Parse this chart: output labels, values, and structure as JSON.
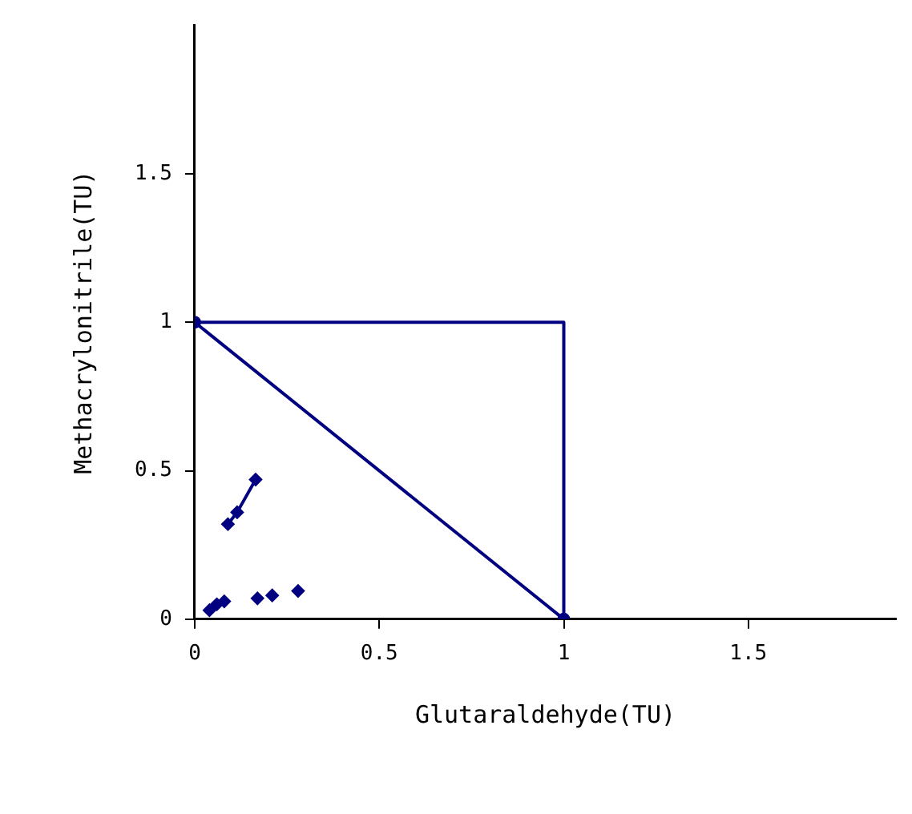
{
  "chart_data": {
    "type": "line",
    "xlabel": "Glutaraldehyde(TU)",
    "ylabel": "Methacrylonitrile(TU)",
    "xlim": [
      0,
      1.9
    ],
    "ylim": [
      0,
      2
    ],
    "xticks": [
      0,
      0.5,
      1,
      1.5
    ],
    "yticks": [
      0,
      0.5,
      1,
      1.5
    ],
    "grid": false,
    "legend": false,
    "line_style": "solid",
    "marker": "diamond",
    "series": [
      {
        "color": "#000080",
        "x": [
          0,
          1
        ],
        "values": [
          1,
          0
        ],
        "marker": "circle"
      },
      {
        "color": "#000080",
        "x": [
          0,
          1,
          1
        ],
        "values": [
          1,
          1,
          0
        ],
        "marker": "none"
      },
      {
        "color": "#000080",
        "x": [
          0.09,
          0.115,
          0.165
        ],
        "values": [
          0.32,
          0.36,
          0.47
        ]
      },
      {
        "color": "#000080",
        "type": "scatter",
        "x": [
          0.04,
          0.06,
          0.08
        ],
        "values": [
          0.03,
          0.05,
          0.06
        ]
      },
      {
        "color": "#000080",
        "type": "scatter",
        "x": [
          0.17,
          0.21,
          0.28
        ],
        "values": [
          0.07,
          0.08,
          0.095
        ]
      }
    ]
  }
}
